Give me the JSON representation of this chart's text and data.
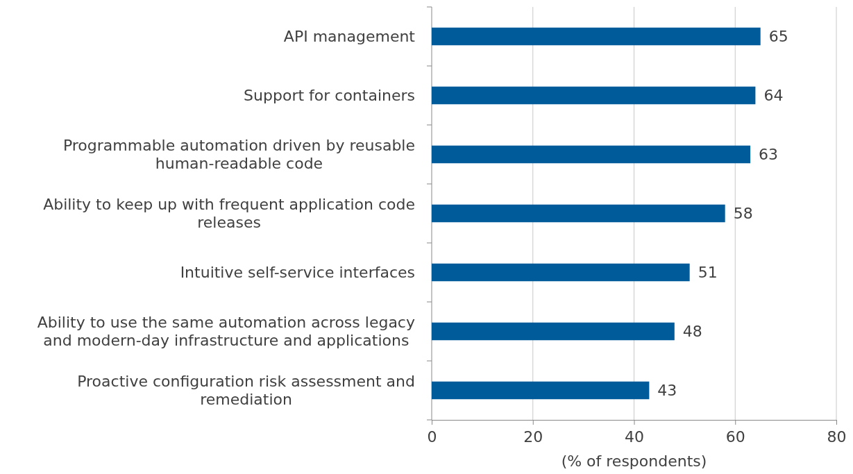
{
  "chart_data": {
    "type": "bar",
    "orientation": "horizontal",
    "categories": [
      "API management",
      "Support for containers",
      "Programmable automation driven by reusable human-readable code",
      "Ability to keep up with frequent application code releases",
      "Intuitive self-service interfaces",
      "Ability to use the same automation across legacy and modern-day infrastructure and applications",
      "Proactive configuration risk assessment and remediation"
    ],
    "values": [
      65,
      64,
      63,
      58,
      51,
      48,
      43
    ],
    "color": "#005b9a",
    "xlim": [
      0,
      80
    ],
    "xticks": [
      0,
      20,
      40,
      60,
      80
    ],
    "xlabel": "(% of respondents)",
    "grid": "x",
    "data_labels": true
  }
}
